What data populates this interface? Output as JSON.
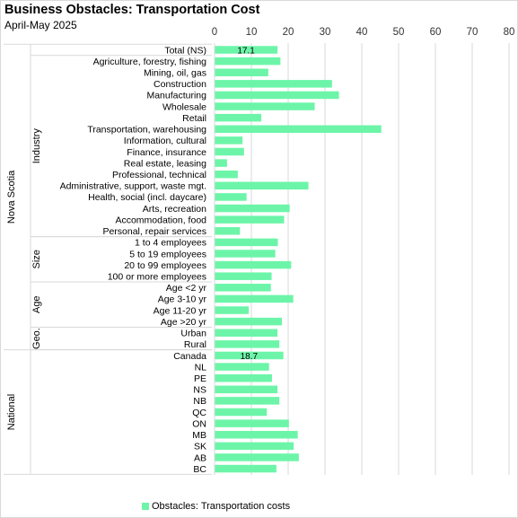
{
  "chart_data": {
    "type": "bar",
    "orientation": "horizontal",
    "title": "Business Obstacles: Transportation Cost",
    "subtitle": "April-May 2025",
    "xlim": [
      0,
      80
    ],
    "xticks": [
      0,
      10,
      20,
      30,
      40,
      50,
      60,
      70,
      80
    ],
    "grid": true,
    "legend_position": "bottom",
    "bar_color": "#6cf5a8",
    "series": [
      {
        "name": "Obstacles: Transportation costs",
        "points": [
          {
            "category": "Total (NS)",
            "value": 17.1,
            "label": "17.1"
          },
          {
            "category": "Agriculture, forestry, fishing",
            "value": 17.9
          },
          {
            "category": "Mining, oil, gas",
            "value": 14.6
          },
          {
            "category": "Construction",
            "value": 31.9
          },
          {
            "category": "Manufacturing",
            "value": 33.8
          },
          {
            "category": "Wholesale",
            "value": 27.2
          },
          {
            "category": "Retail",
            "value": 12.7
          },
          {
            "category": "Transportation, warehousing",
            "value": 45.3
          },
          {
            "category": "Information, cultural",
            "value": 7.6
          },
          {
            "category": "Finance, insurance",
            "value": 8.0
          },
          {
            "category": "Real estate, leasing",
            "value": 3.4
          },
          {
            "category": "Professional, technical",
            "value": 6.3
          },
          {
            "category": "Administrative, support, waste mgt.",
            "value": 25.5
          },
          {
            "category": "Health, social (incl. daycare)",
            "value": 8.7
          },
          {
            "category": "Arts, recreation",
            "value": 20.4
          },
          {
            "category": "Accommodation, food",
            "value": 18.9
          },
          {
            "category": "Personal, repair services",
            "value": 6.9
          },
          {
            "category": "1 to 4 employees",
            "value": 17.2
          },
          {
            "category": "5 to 19 employees",
            "value": 16.5
          },
          {
            "category": "20 to 99 employees",
            "value": 20.8
          },
          {
            "category": "100 or more employees",
            "value": 15.5
          },
          {
            "category": "Age <2 yr",
            "value": 15.3
          },
          {
            "category": "Age 3-10 yr",
            "value": 21.4
          },
          {
            "category": "Age 11-20 yr",
            "value": 9.3
          },
          {
            "category": "Age >20 yr",
            "value": 18.3
          },
          {
            "category": "Urban",
            "value": 17.1
          },
          {
            "category": "Rural",
            "value": 17.6
          },
          {
            "category": "Canada",
            "value": 18.7,
            "label": "18.7"
          },
          {
            "category": "NL",
            "value": 14.8
          },
          {
            "category": "PE",
            "value": 15.6
          },
          {
            "category": "NS",
            "value": 17.1
          },
          {
            "category": "NB",
            "value": 17.6
          },
          {
            "category": "QC",
            "value": 14.2
          },
          {
            "category": "ON",
            "value": 20.2
          },
          {
            "category": "MB",
            "value": 22.6
          },
          {
            "category": "SK",
            "value": 21.5
          },
          {
            "category": "AB",
            "value": 22.9
          },
          {
            "category": "BC",
            "value": 16.8
          }
        ]
      }
    ],
    "groups": [
      {
        "label": "Nova Scotia",
        "start": 0,
        "end": 26
      },
      {
        "label": "National",
        "start": 27,
        "end": 37
      }
    ],
    "subgroups": [
      {
        "label": "Industry",
        "start": 1,
        "end": 16
      },
      {
        "label": "Size",
        "start": 17,
        "end": 20
      },
      {
        "label": "Age",
        "start": 21,
        "end": 24
      },
      {
        "label": "Geo.",
        "start": 25,
        "end": 26
      }
    ]
  }
}
